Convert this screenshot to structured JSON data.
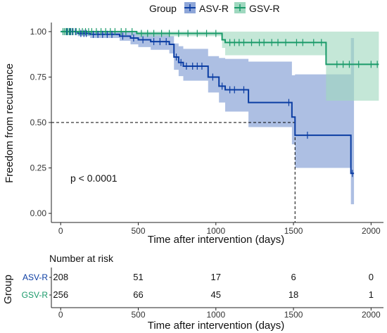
{
  "legend": {
    "title": "Group",
    "items": [
      {
        "label": "ASV-R",
        "color": "#0b3da3"
      },
      {
        "label": "GSV-R",
        "color": "#1a9a6a"
      }
    ]
  },
  "annotation": "p < 0.0001",
  "risk_table": {
    "title": "Number at risk",
    "axis_title": "Group",
    "xlabel": "Time after intervention (days)",
    "x_ticks": [
      0,
      500,
      1000,
      1500,
      2000
    ],
    "rows": [
      {
        "label": "ASV-R",
        "color": "#0b3da3",
        "values": [
          "208",
          "51",
          "17",
          "6",
          "0"
        ]
      },
      {
        "label": "GSV-R",
        "color": "#1a9a6a",
        "values": [
          "256",
          "66",
          "45",
          "18",
          "1"
        ]
      }
    ]
  },
  "chart_data": {
    "type": "line",
    "subtype": "kaplan-meier",
    "xlabel": "Time after intervention (days)",
    "ylabel": "Freedom from recurrence",
    "xlim": [
      -60,
      2080
    ],
    "ylim": [
      -0.05,
      1.05
    ],
    "x_ticks": [
      0,
      500,
      1000,
      1500,
      2000
    ],
    "y_ticks": [
      0.0,
      0.25,
      0.5,
      0.75,
      1.0
    ],
    "y_tick_labels": [
      "0.00",
      "0.25",
      "0.50",
      "0.75",
      "1.00"
    ],
    "median_line": {
      "y": 0.5,
      "x": 1510
    },
    "grid": false,
    "legend_position": "top",
    "series": [
      {
        "name": "ASV-R",
        "color": "#0b3da3",
        "ci_color": "#8ea6d8",
        "steps": [
          [
            0,
            1.0
          ],
          [
            110,
            0.99
          ],
          [
            190,
            0.985
          ],
          [
            380,
            0.975
          ],
          [
            450,
            0.965
          ],
          [
            500,
            0.955
          ],
          [
            580,
            0.945
          ],
          [
            700,
            0.93
          ],
          [
            730,
            0.86
          ],
          [
            760,
            0.83
          ],
          [
            790,
            0.81
          ],
          [
            950,
            0.75
          ],
          [
            1020,
            0.7
          ],
          [
            1060,
            0.68
          ],
          [
            1210,
            0.61
          ],
          [
            1490,
            0.53
          ],
          [
            1510,
            0.43
          ],
          [
            1870,
            0.22
          ],
          [
            1890,
            0.22
          ]
        ],
        "ci_steps": [
          [
            0,
            1.0,
            1.0
          ],
          [
            110,
            1.0,
            0.975
          ],
          [
            190,
            1.0,
            0.965
          ],
          [
            380,
            1.0,
            0.95
          ],
          [
            450,
            0.995,
            0.93
          ],
          [
            500,
            0.99,
            0.915
          ],
          [
            580,
            0.985,
            0.9
          ],
          [
            700,
            0.975,
            0.88
          ],
          [
            730,
            0.935,
            0.79
          ],
          [
            760,
            0.92,
            0.755
          ],
          [
            790,
            0.905,
            0.73
          ],
          [
            950,
            0.865,
            0.665
          ],
          [
            1020,
            0.855,
            0.61
          ],
          [
            1060,
            0.85,
            0.56
          ],
          [
            1210,
            0.835,
            0.475
          ],
          [
            1490,
            0.76,
            0.38
          ],
          [
            1510,
            0.765,
            0.25
          ],
          [
            1870,
            0.965,
            0.05
          ],
          [
            1890,
            0.965,
            0.05
          ]
        ],
        "censors": [
          [
            40,
            1.0
          ],
          [
            60,
            1.0
          ],
          [
            75,
            1.0
          ],
          [
            95,
            1.0
          ],
          [
            130,
            0.99
          ],
          [
            150,
            0.99
          ],
          [
            165,
            0.99
          ],
          [
            210,
            0.985
          ],
          [
            240,
            0.985
          ],
          [
            270,
            0.985
          ],
          [
            300,
            0.985
          ],
          [
            330,
            0.985
          ],
          [
            400,
            0.975
          ],
          [
            470,
            0.965
          ],
          [
            530,
            0.955
          ],
          [
            600,
            0.945
          ],
          [
            640,
            0.945
          ],
          [
            680,
            0.945
          ],
          [
            745,
            0.86
          ],
          [
            775,
            0.83
          ],
          [
            810,
            0.81
          ],
          [
            850,
            0.81
          ],
          [
            880,
            0.81
          ],
          [
            910,
            0.81
          ],
          [
            980,
            0.75
          ],
          [
            1040,
            0.7
          ],
          [
            1090,
            0.68
          ],
          [
            1120,
            0.68
          ],
          [
            1180,
            0.68
          ],
          [
            1470,
            0.61
          ],
          [
            1590,
            0.43
          ],
          [
            1880,
            0.22
          ]
        ]
      },
      {
        "name": "GSV-R",
        "color": "#1a9a6a",
        "ci_color": "#9fd8bf",
        "steps": [
          [
            0,
            1.0
          ],
          [
            490,
            0.99
          ],
          [
            1040,
            0.955
          ],
          [
            1060,
            0.94
          ],
          [
            1710,
            0.82
          ],
          [
            2050,
            0.82
          ]
        ],
        "ci_steps": [
          [
            0,
            1.0,
            1.0
          ],
          [
            490,
            1.0,
            0.975
          ],
          [
            1040,
            1.0,
            0.91
          ],
          [
            1060,
            1.0,
            0.87
          ],
          [
            1710,
            1.0,
            0.62
          ],
          [
            2050,
            1.0,
            0.62
          ]
        ],
        "censors": [
          [
            15,
            1.0
          ],
          [
            25,
            1.0
          ],
          [
            35,
            1.0
          ],
          [
            45,
            1.0
          ],
          [
            55,
            1.0
          ],
          [
            65,
            1.0
          ],
          [
            80,
            1.0
          ],
          [
            100,
            1.0
          ],
          [
            120,
            1.0
          ],
          [
            140,
            1.0
          ],
          [
            160,
            1.0
          ],
          [
            180,
            1.0
          ],
          [
            200,
            1.0
          ],
          [
            230,
            1.0
          ],
          [
            260,
            1.0
          ],
          [
            290,
            1.0
          ],
          [
            320,
            1.0
          ],
          [
            350,
            1.0
          ],
          [
            390,
            1.0
          ],
          [
            420,
            1.0
          ],
          [
            460,
            1.0
          ],
          [
            520,
            0.99
          ],
          [
            560,
            0.99
          ],
          [
            600,
            0.99
          ],
          [
            650,
            0.99
          ],
          [
            700,
            0.99
          ],
          [
            760,
            0.99
          ],
          [
            820,
            0.99
          ],
          [
            880,
            0.99
          ],
          [
            940,
            0.99
          ],
          [
            1000,
            0.99
          ],
          [
            1090,
            0.94
          ],
          [
            1120,
            0.94
          ],
          [
            1150,
            0.94
          ],
          [
            1180,
            0.94
          ],
          [
            1230,
            0.94
          ],
          [
            1280,
            0.94
          ],
          [
            1310,
            0.94
          ],
          [
            1360,
            0.94
          ],
          [
            1400,
            0.94
          ],
          [
            1450,
            0.94
          ],
          [
            1520,
            0.94
          ],
          [
            1560,
            0.94
          ],
          [
            1630,
            0.94
          ],
          [
            1680,
            0.94
          ],
          [
            1780,
            0.82
          ],
          [
            1820,
            0.82
          ],
          [
            1860,
            0.82
          ],
          [
            1920,
            0.82
          ],
          [
            2000,
            0.82
          ],
          [
            2040,
            0.82
          ]
        ]
      }
    ]
  }
}
